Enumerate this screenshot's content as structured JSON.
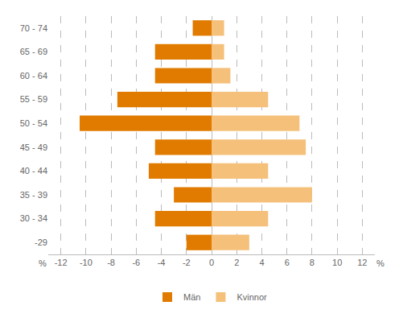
{
  "chart_data": {
    "type": "bar",
    "orientation": "horizontal",
    "categories": [
      "-29",
      "30 - 34",
      "35 - 39",
      "40 - 44",
      "45 - 49",
      "50 - 54",
      "55 - 59",
      "60 - 64",
      "65 - 69",
      "70 - 74"
    ],
    "series": [
      {
        "name": "Män",
        "color": "#E07B00",
        "values": [
          -2.0,
          -4.5,
          -3.0,
          -5.0,
          -4.5,
          -10.5,
          -7.5,
          -4.5,
          -4.5,
          -1.5
        ]
      },
      {
        "name": "Kvinnor",
        "color": "#F5C07A",
        "values": [
          3.0,
          4.5,
          8.0,
          4.5,
          7.5,
          7.0,
          4.5,
          1.5,
          1.0,
          1.0
        ]
      }
    ],
    "xlim": [
      -13,
      13
    ],
    "xticks": [
      -12,
      -10,
      -8,
      -6,
      -4,
      -2,
      0,
      2,
      4,
      6,
      8,
      10,
      12
    ],
    "annotations": [
      "%",
      "%"
    ],
    "grid": true,
    "legend": "bottom"
  }
}
